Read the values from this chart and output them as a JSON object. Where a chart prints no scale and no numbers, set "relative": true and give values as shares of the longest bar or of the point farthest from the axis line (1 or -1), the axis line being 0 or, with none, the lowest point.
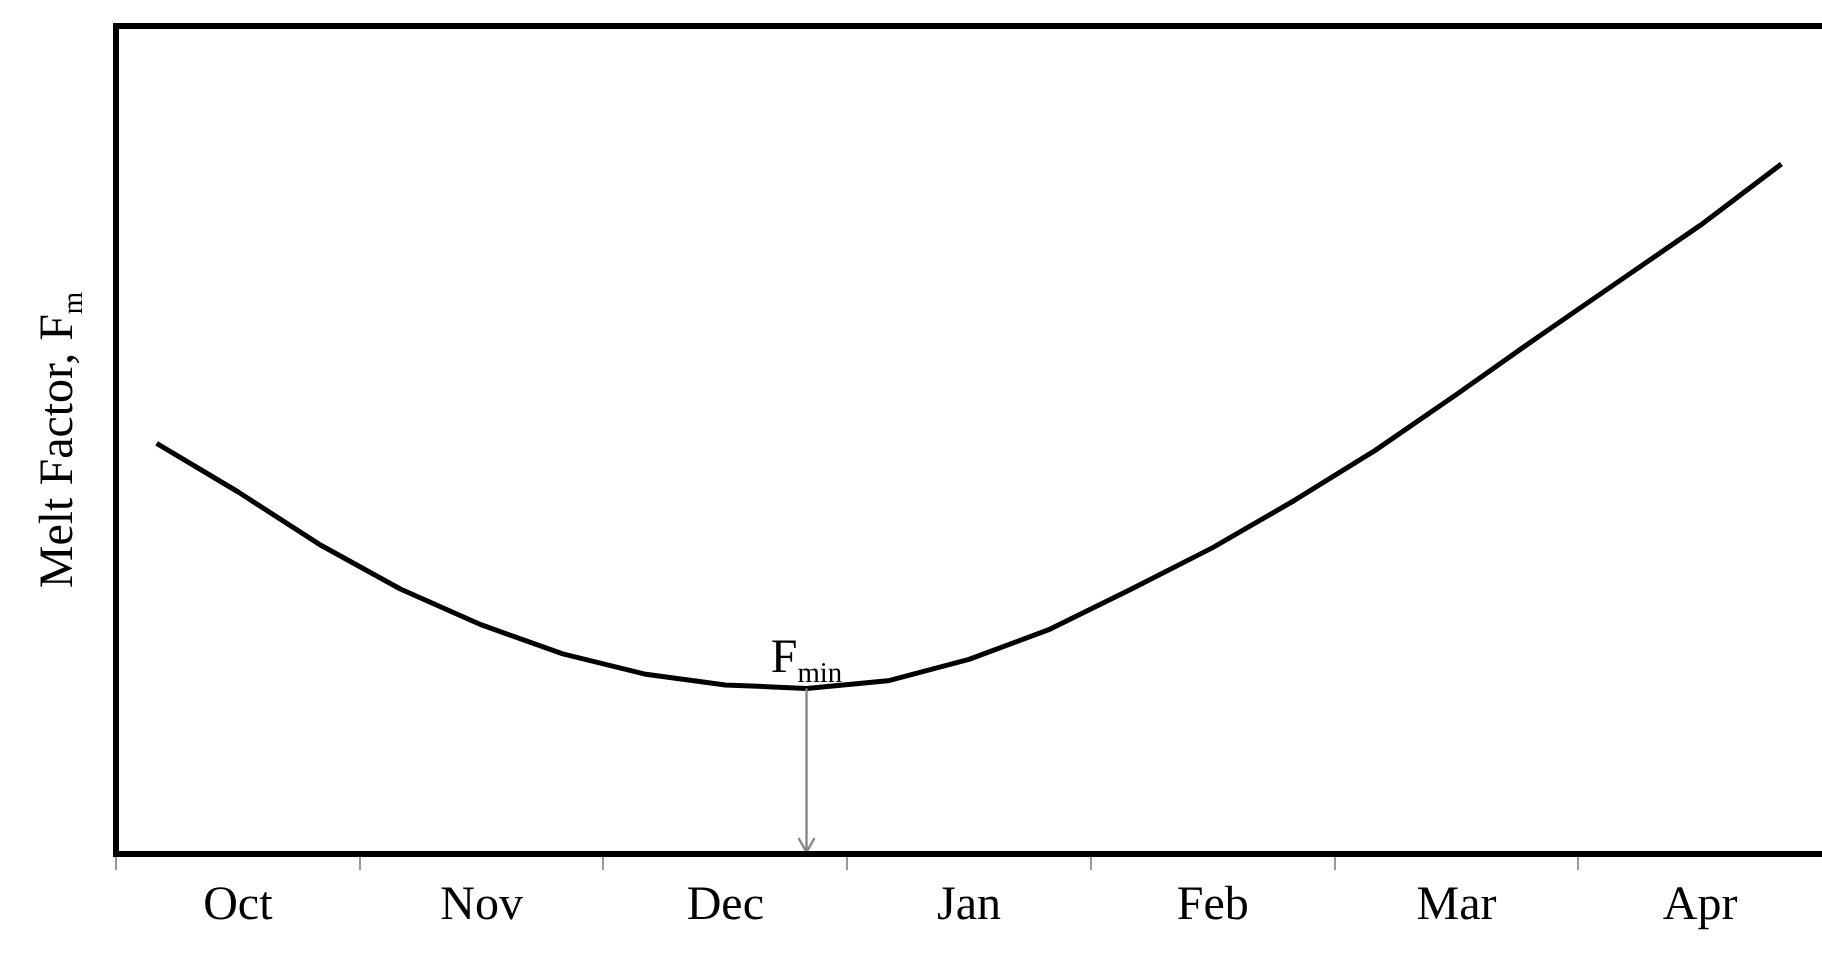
{
  "chart_data": {
    "type": "line",
    "relative": true,
    "ylabel": "Melt Factor, F$_{m}$",
    "categories": [
      null,
      "Oct",
      null,
      null,
      "Nov",
      null,
      null,
      "Dec",
      null,
      null,
      "Jan",
      null,
      null,
      "Feb",
      null,
      null,
      "Mar",
      null,
      null,
      "Apr",
      null
    ],
    "series": [
      {
        "color": "#000000",
        "values": [
          0.595,
          0.525,
          0.449,
          0.384,
          0.332,
          0.29,
          0.261,
          0.245,
          0.24,
          0.251,
          0.282,
          0.326,
          0.384,
          0.444,
          0.512,
          0.585,
          0.666,
          0.749,
          0.83,
          0.911,
          1
        ]
      }
    ],
    "marker": "none",
    "line_style": "solid",
    "annotations": [
      {
        "text": "F$_{min}$",
        "y": 0.24
      }
    ]
  }
}
